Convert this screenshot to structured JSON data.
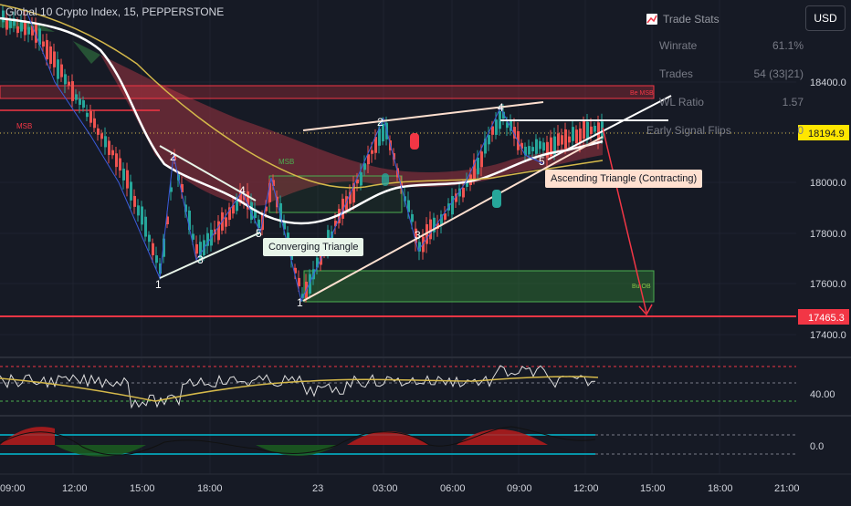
{
  "header": {
    "symbol_title": "Global 10 Crypto Index, 15, PEPPERSTONE",
    "currency_button": "USD"
  },
  "trade_stats": {
    "title": "Trade Stats",
    "rows": [
      {
        "label": "Winrate",
        "value": "61.1%"
      },
      {
        "label": "Trades",
        "value": "54 (33|21)"
      },
      {
        "label": "WL Ratio",
        "value": "1.57"
      },
      {
        "label": "Early Signal Flips",
        "value": "0"
      }
    ]
  },
  "price_axis": {
    "ticks": [
      "18400.0",
      "18000.0",
      "17800.0",
      "17600.0",
      "17400.0"
    ],
    "current_price": "18194.9",
    "target_price": "17465.3"
  },
  "oscillator_axis": {
    "rsi_tick": "40.00",
    "macd_tick": "0.0"
  },
  "time_axis": {
    "ticks": [
      "09:00",
      "12:00",
      "15:00",
      "18:00",
      "23",
      "03:00",
      "06:00",
      "09:00",
      "12:00",
      "15:00",
      "18:00",
      "21:00"
    ]
  },
  "annotations": {
    "converging_triangle": "Converging Triangle",
    "ascending_triangle": "Ascending Triangle (Contracting)",
    "msb_left": "MSB",
    "msb_mid": "MSB",
    "bear_ob": "Be MSB",
    "bull_ob": "Bu OB",
    "wave_labels": [
      "1",
      "2",
      "3",
      "4",
      "5",
      "1",
      "2",
      "3",
      "4",
      "5"
    ]
  },
  "colors": {
    "background": "#161a25",
    "bull": "#26a69a",
    "bear": "#ef5350",
    "resistance": "#f23645",
    "ma_white": "#ffffff",
    "ma_yellow": "#d4b84a"
  }
}
